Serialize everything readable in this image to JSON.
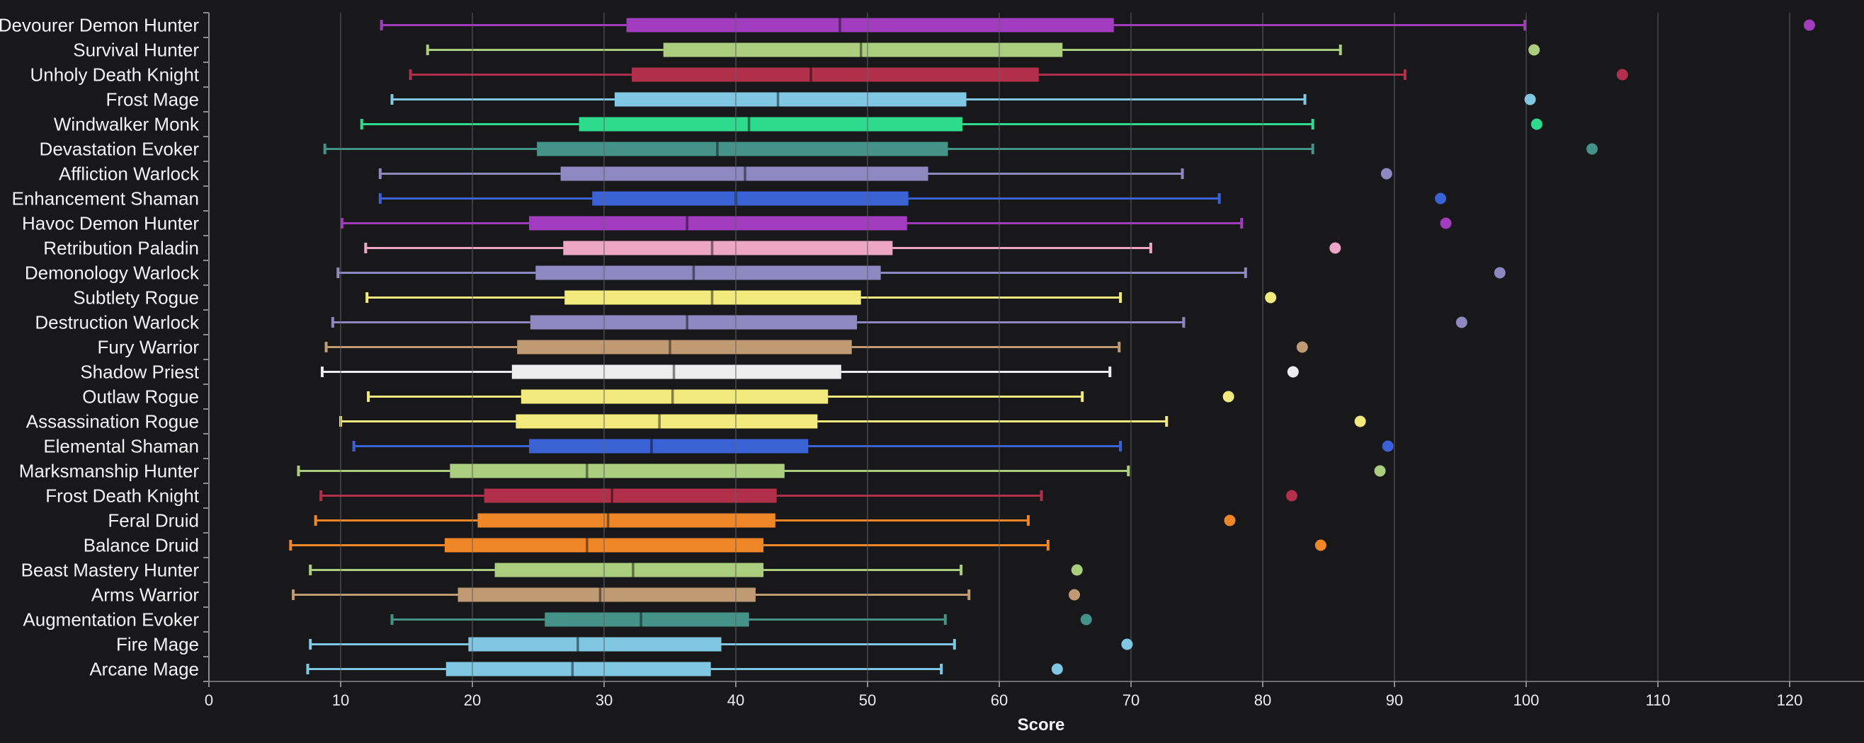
{
  "figure": {
    "background": "#18181a",
    "grid_color": "rgba(95,95,100,0.50)",
    "spine_color": "#8b8b8b",
    "tick_color": "#8b8b8b",
    "text_color": "#f2f2f2",
    "median_overlay": "rgba(0,0,0,0.45)"
  },
  "chart_data": {
    "type": "box",
    "orientation": "horizontal",
    "title": "",
    "xlabel": "Score",
    "ylabel": "",
    "legend": "none",
    "grid": "vertical gridlines at every 10, drawn above boxes",
    "xlim": [
      0,
      125.6
    ],
    "x_ticks": [
      0,
      10,
      20,
      30,
      40,
      50,
      60,
      70,
      80,
      90,
      100,
      110,
      120
    ],
    "categories": [
      "Devourer Demon Hunter",
      "Survival Hunter",
      "Unholy Death Knight",
      "Frost Mage",
      "Windwalker Monk",
      "Devastation Evoker",
      "Affliction Warlock",
      "Enhancement Shaman",
      "Havoc Demon Hunter",
      "Retribution Paladin",
      "Demonology Warlock",
      "Subtlety Rogue",
      "Destruction Warlock",
      "Fury Warrior",
      "Shadow Priest",
      "Outlaw Rogue",
      "Assassination Rogue",
      "Elemental Shaman",
      "Marksmanship Hunter",
      "Frost Death Knight",
      "Feral Druid",
      "Balance Druid",
      "Beast Mastery Hunter",
      "Arms Warrior",
      "Augmentation Evoker",
      "Fire Mage",
      "Arcane Mage"
    ],
    "series": [
      {
        "label": "Devourer Demon Hunter",
        "color": "#a13cbe",
        "whisker_low": 13.1,
        "q1": 31.7,
        "median": 47.9,
        "q3": 68.7,
        "whisker_high": 99.9,
        "outliers": [
          121.5
        ]
      },
      {
        "label": "Survival Hunter",
        "color": "#abce7e",
        "whisker_low": 16.6,
        "q1": 34.5,
        "median": 49.5,
        "q3": 64.8,
        "whisker_high": 85.9,
        "outliers": [
          100.6
        ]
      },
      {
        "label": "Unholy Death Knight",
        "color": "#b12f4a",
        "whisker_low": 15.3,
        "q1": 32.1,
        "median": 45.7,
        "q3": 63.0,
        "whisker_high": 90.8,
        "outliers": [
          107.3
        ]
      },
      {
        "label": "Frost Mage",
        "color": "#7fc7e3",
        "whisker_low": 13.9,
        "q1": 30.8,
        "median": 43.2,
        "q3": 57.5,
        "whisker_high": 83.2,
        "outliers": [
          100.3
        ]
      },
      {
        "label": "Windwalker Monk",
        "color": "#2edb8d",
        "whisker_low": 11.6,
        "q1": 28.1,
        "median": 41.0,
        "q3": 57.2,
        "whisker_high": 83.8,
        "outliers": [
          100.8
        ]
      },
      {
        "label": "Devastation Evoker",
        "color": "#459289",
        "whisker_low": 8.8,
        "q1": 24.9,
        "median": 38.6,
        "q3": 56.1,
        "whisker_high": 83.8,
        "outliers": [
          105.0
        ]
      },
      {
        "label": "Affliction Warlock",
        "color": "#8f87c0",
        "whisker_low": 13.0,
        "q1": 26.7,
        "median": 40.7,
        "q3": 54.6,
        "whisker_high": 73.9,
        "outliers": [
          89.4
        ]
      },
      {
        "label": "Enhancement Shaman",
        "color": "#3a62d4",
        "whisker_low": 13.0,
        "q1": 29.1,
        "median": 40.0,
        "q3": 53.1,
        "whisker_high": 76.7,
        "outliers": [
          93.5
        ]
      },
      {
        "label": "Havoc Demon Hunter",
        "color": "#a13cbe",
        "whisker_low": 10.1,
        "q1": 24.3,
        "median": 36.3,
        "q3": 53.0,
        "whisker_high": 78.4,
        "outliers": [
          93.9
        ]
      },
      {
        "label": "Retribution Paladin",
        "color": "#eda6c6",
        "whisker_low": 11.9,
        "q1": 26.9,
        "median": 38.2,
        "q3": 51.9,
        "whisker_high": 71.5,
        "outliers": [
          85.5
        ]
      },
      {
        "label": "Demonology Warlock",
        "color": "#8f87c0",
        "whisker_low": 9.8,
        "q1": 24.8,
        "median": 36.8,
        "q3": 51.0,
        "whisker_high": 78.7,
        "outliers": [
          98.0
        ]
      },
      {
        "label": "Subtlety Rogue",
        "color": "#f2ea7d",
        "whisker_low": 12.0,
        "q1": 27.0,
        "median": 38.2,
        "q3": 49.5,
        "whisker_high": 69.2,
        "outliers": [
          80.6
        ]
      },
      {
        "label": "Destruction Warlock",
        "color": "#8f87c0",
        "whisker_low": 9.4,
        "q1": 24.4,
        "median": 36.3,
        "q3": 49.2,
        "whisker_high": 74.0,
        "outliers": [
          95.1
        ]
      },
      {
        "label": "Fury Warrior",
        "color": "#c09a72",
        "whisker_low": 8.9,
        "q1": 23.4,
        "median": 35.0,
        "q3": 48.8,
        "whisker_high": 69.1,
        "outliers": [
          83.0
        ]
      },
      {
        "label": "Shadow Priest",
        "color": "#ededed",
        "whisker_low": 8.6,
        "q1": 23.0,
        "median": 35.3,
        "q3": 48.0,
        "whisker_high": 68.4,
        "outliers": [
          82.3
        ]
      },
      {
        "label": "Outlaw Rogue",
        "color": "#f2ea7d",
        "whisker_low": 12.1,
        "q1": 23.7,
        "median": 35.2,
        "q3": 47.0,
        "whisker_high": 66.3,
        "outliers": [
          77.4
        ]
      },
      {
        "label": "Assassination Rogue",
        "color": "#f2ea7d",
        "whisker_low": 10.0,
        "q1": 23.3,
        "median": 34.2,
        "q3": 46.2,
        "whisker_high": 72.7,
        "outliers": [
          87.4
        ]
      },
      {
        "label": "Elemental Shaman",
        "color": "#3a62d4",
        "whisker_low": 11.0,
        "q1": 24.3,
        "median": 33.6,
        "q3": 45.5,
        "whisker_high": 69.2,
        "outliers": [
          89.5
        ]
      },
      {
        "label": "Marksmanship Hunter",
        "color": "#abce7e",
        "whisker_low": 6.8,
        "q1": 18.3,
        "median": 28.7,
        "q3": 43.7,
        "whisker_high": 69.8,
        "outliers": [
          88.9
        ]
      },
      {
        "label": "Frost Death Knight",
        "color": "#b12f4a",
        "whisker_low": 8.5,
        "q1": 20.9,
        "median": 30.6,
        "q3": 43.1,
        "whisker_high": 63.2,
        "outliers": [
          82.2
        ]
      },
      {
        "label": "Feral Druid",
        "color": "#ef8728",
        "whisker_low": 8.1,
        "q1": 20.4,
        "median": 30.3,
        "q3": 43.0,
        "whisker_high": 62.2,
        "outliers": [
          77.5
        ]
      },
      {
        "label": "Balance Druid",
        "color": "#ef8728",
        "whisker_low": 6.2,
        "q1": 17.9,
        "median": 28.7,
        "q3": 42.1,
        "whisker_high": 63.7,
        "outliers": [
          84.4
        ]
      },
      {
        "label": "Beast Mastery Hunter",
        "color": "#abce7e",
        "whisker_low": 7.7,
        "q1": 21.7,
        "median": 32.2,
        "q3": 42.1,
        "whisker_high": 57.1,
        "outliers": [
          65.9
        ]
      },
      {
        "label": "Arms Warrior",
        "color": "#c09a72",
        "whisker_low": 6.4,
        "q1": 18.9,
        "median": 29.7,
        "q3": 41.5,
        "whisker_high": 57.7,
        "outliers": [
          65.7
        ]
      },
      {
        "label": "Augmentation Evoker",
        "color": "#459289",
        "whisker_low": 13.9,
        "q1": 25.5,
        "median": 32.8,
        "q3": 41.0,
        "whisker_high": 55.9,
        "outliers": [
          66.6
        ]
      },
      {
        "label": "Fire Mage",
        "color": "#7fc7e3",
        "whisker_low": 7.7,
        "q1": 19.7,
        "median": 28.0,
        "q3": 38.9,
        "whisker_high": 56.6,
        "outliers": [
          69.7
        ]
      },
      {
        "label": "Arcane Mage",
        "color": "#7fc7e3",
        "whisker_low": 7.5,
        "q1": 18.0,
        "median": 27.6,
        "q3": 38.1,
        "whisker_high": 55.6,
        "outliers": [
          64.4
        ]
      }
    ]
  }
}
